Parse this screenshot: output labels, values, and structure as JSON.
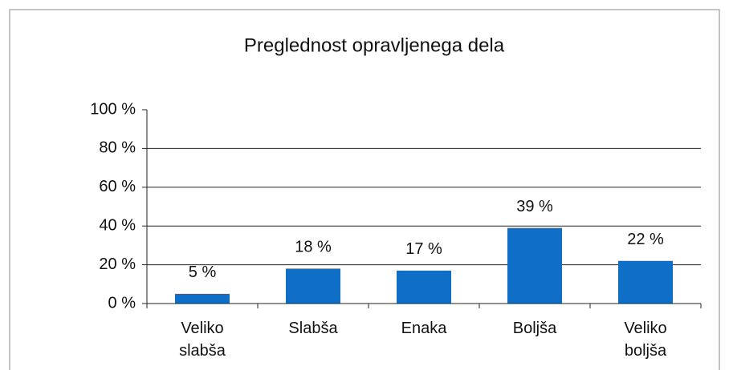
{
  "chart_data": {
    "type": "bar",
    "title": "Preglednost opravljenega dela",
    "categories": [
      "Veliko slabša",
      "Slabša",
      "Enaka",
      "Boljša",
      "Veliko boljša"
    ],
    "values": [
      5,
      18,
      17,
      39,
      22
    ],
    "value_labels": [
      "5 %",
      "18 %",
      "17 %",
      "39 %",
      "22 %"
    ],
    "color": "#0f6fc6",
    "ylim": [
      0,
      100
    ],
    "yticks": [
      {
        "value": 0,
        "label": "0 %"
      },
      {
        "value": 20,
        "label": "20 %"
      },
      {
        "value": 40,
        "label": "40 %"
      },
      {
        "value": 60,
        "label": "60 %"
      },
      {
        "value": 80,
        "label": "80 %"
      },
      {
        "value": 100,
        "label": "100 %"
      }
    ],
    "grid": true
  }
}
